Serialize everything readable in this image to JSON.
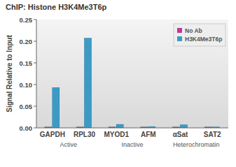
{
  "chart_data": {
    "type": "bar",
    "title": "ChIP: Histone H3K4Me3T6p",
    "y_label": "Signal Relative to Input",
    "categories": [
      "GAPDH",
      "RPL30",
      "MYOD1",
      "AFM",
      "αSat",
      "SAT2"
    ],
    "annotations": [
      "Active",
      "Inactive",
      "Heterochromatin"
    ],
    "series": [
      {
        "name": "No Ab",
        "color": "#c0389a",
        "values": [
          0.002,
          0.002,
          0.002,
          0.002,
          0.002,
          0.002
        ]
      },
      {
        "name": "H3K4Me3T6p",
        "color": "#3a9cc6",
        "values": [
          0.093,
          0.207,
          0.008,
          0.003,
          0.007,
          0.002
        ]
      }
    ],
    "ylim": [
      0,
      0.25
    ],
    "yticks": [
      {
        "value": 0,
        "label": "0.00"
      },
      {
        "value": 0.05,
        "label": "0.05"
      },
      {
        "value": 0.1,
        "label": "0.10"
      },
      {
        "value": 0.15,
        "label": "0.15"
      },
      {
        "value": 0.2,
        "label": "0.20"
      },
      {
        "value": 0.25,
        "label": "0.25"
      }
    ],
    "grid": false,
    "legend": "top-right"
  }
}
